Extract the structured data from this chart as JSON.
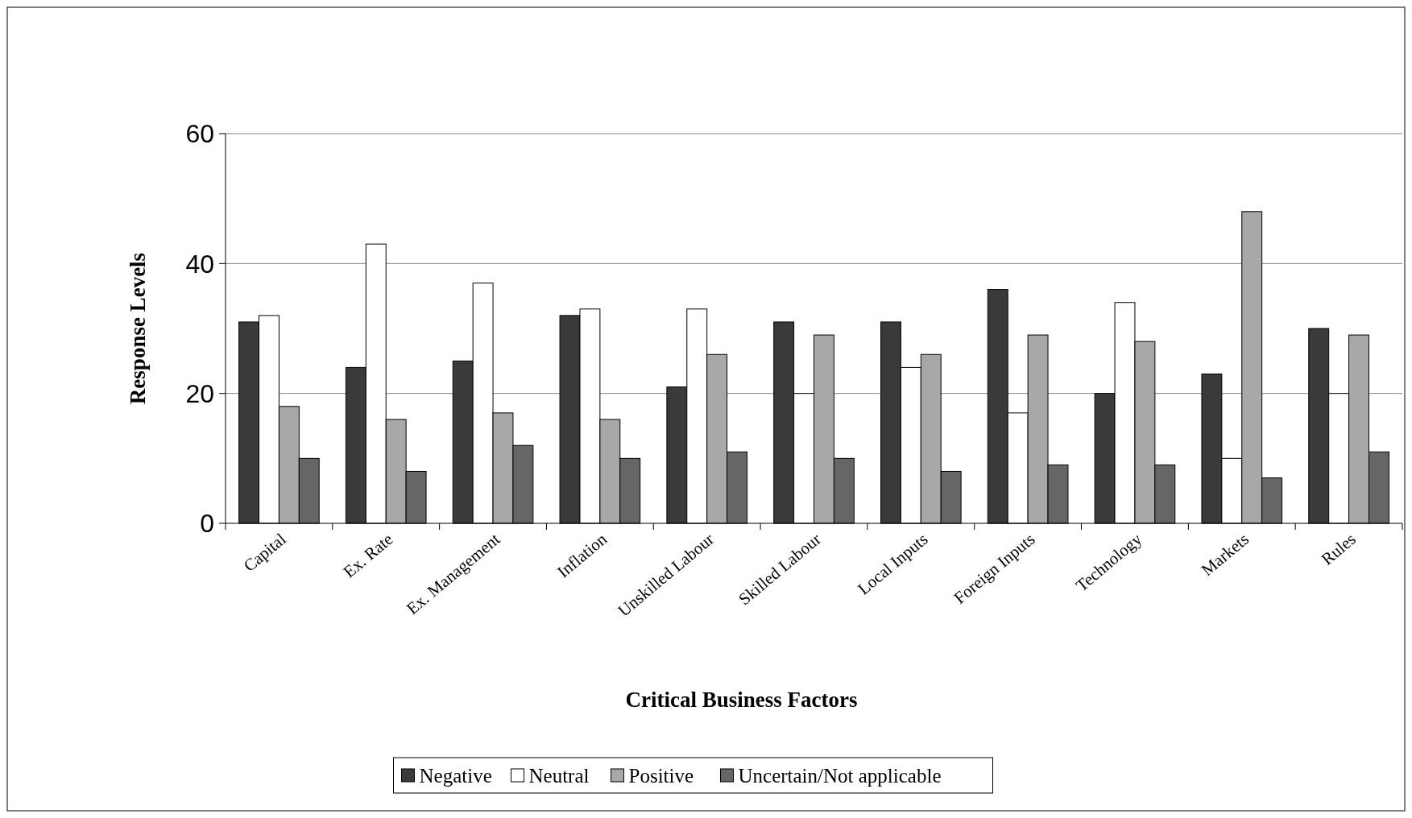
{
  "chart_data": {
    "type": "bar",
    "xlabel": "Critical Business Factors",
    "ylabel": "Response Levels",
    "categories": [
      "Capital",
      "Ex. Rate",
      "Ex. Management",
      "Inflation",
      "Unskilled Labour",
      "Skilled Labour",
      "Local Inputs",
      "Foreign Inputs",
      "Technology",
      "Markets",
      "Rules"
    ],
    "series": [
      {
        "name": "Negative",
        "color": "#3a3a3a",
        "values": [
          31,
          24,
          25,
          32,
          21,
          31,
          31,
          36,
          20,
          23,
          30
        ]
      },
      {
        "name": "Neutral",
        "color": "#ffffff",
        "values": [
          32,
          43,
          37,
          33,
          33,
          20,
          24,
          17,
          34,
          10,
          20
        ]
      },
      {
        "name": "Positive",
        "color": "#a8a8a8",
        "values": [
          18,
          16,
          17,
          16,
          26,
          29,
          26,
          29,
          28,
          48,
          29
        ]
      },
      {
        "name": "Uncertain/Not applicable",
        "color": "#666666",
        "values": [
          10,
          8,
          12,
          10,
          11,
          10,
          8,
          9,
          9,
          7,
          11
        ]
      }
    ],
    "ylim": [
      0,
      60
    ],
    "yticks": [
      0,
      20,
      40,
      60
    ],
    "grid": "y",
    "legend": "bottom"
  }
}
